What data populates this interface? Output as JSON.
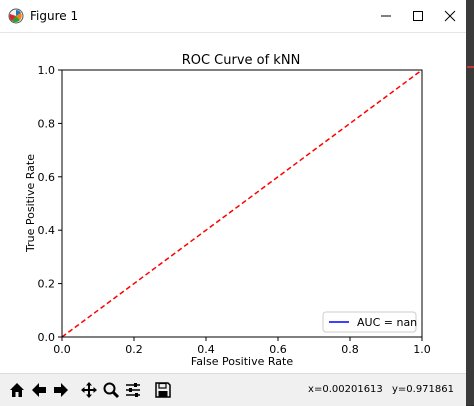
{
  "window": {
    "title": "Figure 1"
  },
  "chart_data": {
    "type": "line",
    "title": "ROC Curve of kNN",
    "xlabel": "False Positive Rate",
    "ylabel": "True Positive Rate",
    "xlim": [
      0.0,
      1.0
    ],
    "ylim": [
      0.0,
      1.0
    ],
    "x_ticks": [
      "0.0",
      "0.2",
      "0.4",
      "0.6",
      "0.8",
      "1.0"
    ],
    "y_ticks": [
      "0.0",
      "0.2",
      "0.4",
      "0.6",
      "0.8",
      "1.0"
    ],
    "grid": false,
    "legend_position": "bottom-right",
    "series": [
      {
        "name": "AUC = nan",
        "x": [],
        "y": [],
        "color": "#0000ff",
        "style": "solid"
      },
      {
        "x": [
          0,
          1
        ],
        "y": [
          0,
          1
        ],
        "color": "#ff0000",
        "style": "dashed"
      }
    ]
  },
  "status": {
    "x_readout": "x=0.00201613",
    "y_readout": "y=0.971861"
  },
  "toolbar": {
    "tools": [
      "home-icon",
      "back-icon",
      "forward-icon",
      "pan-icon",
      "zoom-icon",
      "configure-subplots-icon",
      "save-icon"
    ]
  },
  "colors": {
    "titlebar_bg": "#ffffff",
    "toolbar_bg": "#f0f0f0",
    "axes_edge": "#000000"
  }
}
